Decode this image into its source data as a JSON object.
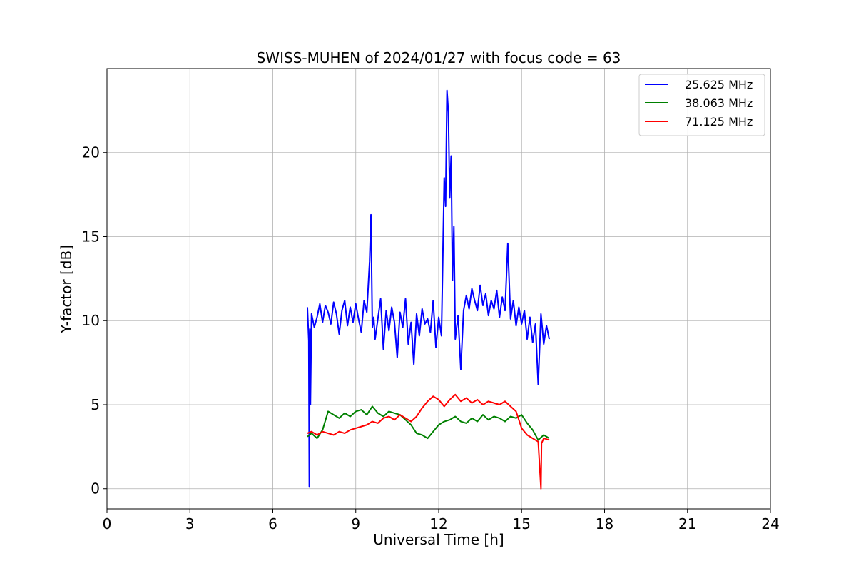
{
  "chart_data": {
    "type": "line",
    "title": "SWISS-MUHEN of 2024/01/27 with focus code = 63",
    "xlabel": "Universal Time [h]",
    "ylabel": "Y-factor [dB]",
    "xlim": [
      0,
      24
    ],
    "ylim": [
      -1.2,
      25
    ],
    "x_ticks": [
      0,
      3,
      6,
      9,
      12,
      15,
      18,
      21,
      24
    ],
    "y_ticks": [
      0,
      5,
      10,
      15,
      20
    ],
    "grid": true,
    "legend_position": "top-right",
    "series": [
      {
        "name": "25.625 MHz",
        "color": "#0000ff",
        "x": [
          7.25,
          7.3,
          7.32,
          7.34,
          7.36,
          7.4,
          7.5,
          7.6,
          7.7,
          7.8,
          7.9,
          8.0,
          8.1,
          8.2,
          8.3,
          8.4,
          8.5,
          8.6,
          8.7,
          8.8,
          8.9,
          9.0,
          9.1,
          9.2,
          9.3,
          9.4,
          9.5,
          9.55,
          9.6,
          9.65,
          9.7,
          9.8,
          9.9,
          10.0,
          10.1,
          10.2,
          10.3,
          10.4,
          10.5,
          10.6,
          10.7,
          10.8,
          10.9,
          11.0,
          11.1,
          11.2,
          11.3,
          11.4,
          11.5,
          11.6,
          11.7,
          11.8,
          11.9,
          12.0,
          12.1,
          12.2,
          12.25,
          12.3,
          12.35,
          12.4,
          12.45,
          12.5,
          12.55,
          12.6,
          12.7,
          12.8,
          12.9,
          13.0,
          13.1,
          13.2,
          13.3,
          13.4,
          13.5,
          13.6,
          13.7,
          13.8,
          13.9,
          14.0,
          14.1,
          14.2,
          14.3,
          14.4,
          14.5,
          14.6,
          14.7,
          14.8,
          14.9,
          15.0,
          15.1,
          15.2,
          15.3,
          15.4,
          15.5,
          15.6,
          15.7,
          15.8,
          15.9,
          16.0
        ],
        "values": [
          10.8,
          8.8,
          0.1,
          9.5,
          5.0,
          10.4,
          9.6,
          10.2,
          11.0,
          9.9,
          10.9,
          10.5,
          9.8,
          11.1,
          10.4,
          9.2,
          10.6,
          11.2,
          9.7,
          10.8,
          9.9,
          11.0,
          10.1,
          9.3,
          11.2,
          10.5,
          13.5,
          16.3,
          9.6,
          10.2,
          8.9,
          10.1,
          11.3,
          8.3,
          10.6,
          9.4,
          10.8,
          9.9,
          7.8,
          10.5,
          9.6,
          11.3,
          8.6,
          9.9,
          7.4,
          10.4,
          9.1,
          10.7,
          9.8,
          10.1,
          9.3,
          11.2,
          8.4,
          10.2,
          9.1,
          18.5,
          16.8,
          23.7,
          22.4,
          17.3,
          19.8,
          12.4,
          15.6,
          8.9,
          10.3,
          7.1,
          10.6,
          11.5,
          10.7,
          11.9,
          11.2,
          10.6,
          12.1,
          10.9,
          11.6,
          10.3,
          11.2,
          10.7,
          11.8,
          10.2,
          11.4,
          10.6,
          14.6,
          10.1,
          11.2,
          9.7,
          10.8,
          9.8,
          10.6,
          8.9,
          10.2,
          8.7,
          9.8,
          6.2,
          10.4,
          8.6,
          9.7,
          8.9
        ]
      },
      {
        "name": "38.063 MHz",
        "color": "#008000",
        "x": [
          7.25,
          7.4,
          7.6,
          7.8,
          8.0,
          8.2,
          8.4,
          8.6,
          8.8,
          9.0,
          9.2,
          9.4,
          9.6,
          9.8,
          10.0,
          10.2,
          10.4,
          10.6,
          10.8,
          11.0,
          11.2,
          11.4,
          11.6,
          11.8,
          12.0,
          12.2,
          12.4,
          12.6,
          12.8,
          13.0,
          13.2,
          13.4,
          13.6,
          13.8,
          14.0,
          14.2,
          14.4,
          14.6,
          14.8,
          15.0,
          15.2,
          15.4,
          15.6,
          15.8,
          16.0
        ],
        "values": [
          3.1,
          3.3,
          3.0,
          3.5,
          4.6,
          4.4,
          4.2,
          4.5,
          4.3,
          4.6,
          4.7,
          4.4,
          4.9,
          4.5,
          4.3,
          4.6,
          4.5,
          4.4,
          4.1,
          3.8,
          3.3,
          3.2,
          3.0,
          3.4,
          3.8,
          4.0,
          4.1,
          4.3,
          4.0,
          3.9,
          4.2,
          4.0,
          4.4,
          4.1,
          4.3,
          4.2,
          4.0,
          4.3,
          4.2,
          4.4,
          3.9,
          3.5,
          2.9,
          3.2,
          3.0
        ]
      },
      {
        "name": "71.125 MHz",
        "color": "#ff0000",
        "x": [
          7.25,
          7.4,
          7.6,
          7.8,
          8.0,
          8.2,
          8.4,
          8.6,
          8.8,
          9.0,
          9.2,
          9.4,
          9.6,
          9.8,
          10.0,
          10.2,
          10.4,
          10.6,
          10.8,
          11.0,
          11.2,
          11.4,
          11.6,
          11.8,
          12.0,
          12.2,
          12.4,
          12.6,
          12.8,
          13.0,
          13.2,
          13.4,
          13.6,
          13.8,
          14.0,
          14.2,
          14.4,
          14.6,
          14.8,
          15.0,
          15.2,
          15.4,
          15.6,
          15.7,
          15.72,
          15.8,
          16.0
        ],
        "values": [
          3.3,
          3.4,
          3.2,
          3.4,
          3.3,
          3.2,
          3.4,
          3.3,
          3.5,
          3.6,
          3.7,
          3.8,
          4.0,
          3.9,
          4.2,
          4.3,
          4.1,
          4.4,
          4.2,
          4.0,
          4.3,
          4.8,
          5.2,
          5.5,
          5.3,
          4.9,
          5.3,
          5.6,
          5.2,
          5.4,
          5.1,
          5.3,
          5.0,
          5.2,
          5.1,
          5.0,
          5.2,
          4.9,
          4.6,
          3.6,
          3.2,
          3.0,
          2.8,
          0.0,
          2.7,
          3.0,
          2.9
        ]
      }
    ]
  }
}
